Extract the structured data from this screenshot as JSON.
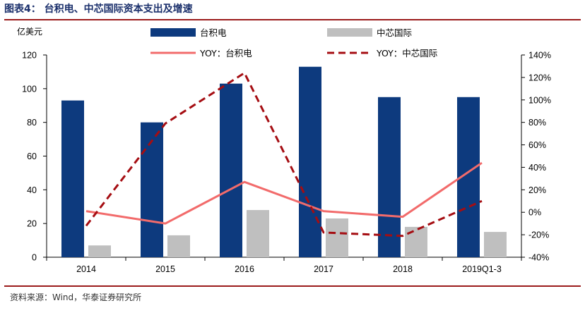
{
  "title": "图表4：  台积电、中芯国际资本支出及增速",
  "source": "资料来源：Wind，华泰证券研究所",
  "chart_data": {
    "type": "bar",
    "unit_label": "亿美元",
    "categories": [
      "2014",
      "2015",
      "2016",
      "2017",
      "2018",
      "2019Q1-3"
    ],
    "series": [
      {
        "name": "台积电",
        "type": "bar",
        "axis": "left",
        "color": "#0d3a7e",
        "values": [
          93,
          80,
          103,
          113,
          95,
          95
        ]
      },
      {
        "name": "中芯国际",
        "type": "bar",
        "axis": "left",
        "color": "#bfbfbf",
        "values": [
          7,
          13,
          28,
          23,
          18,
          15
        ]
      },
      {
        "name": "YOY：台积电",
        "type": "line",
        "style": "solid",
        "axis": "right",
        "color": "#f26b6b",
        "values": [
          1,
          -10,
          27,
          1,
          -4,
          44
        ]
      },
      {
        "name": "YOY：中芯国际",
        "type": "line",
        "style": "dashed",
        "axis": "right",
        "color": "#a50d12",
        "values": [
          -12,
          79,
          124,
          -18,
          -21,
          10
        ]
      }
    ],
    "y_left": {
      "min": 0,
      "max": 120,
      "ticks": [
        "0",
        "20",
        "40",
        "60",
        "80",
        "100",
        "120"
      ]
    },
    "y_right": {
      "min": -40,
      "max": 140,
      "ticks": [
        "-40%",
        "-20%",
        "0%",
        "20%",
        "40%",
        "60%",
        "80%",
        "100%",
        "120%",
        "140%"
      ]
    },
    "grid": false,
    "legend_position": "top"
  }
}
